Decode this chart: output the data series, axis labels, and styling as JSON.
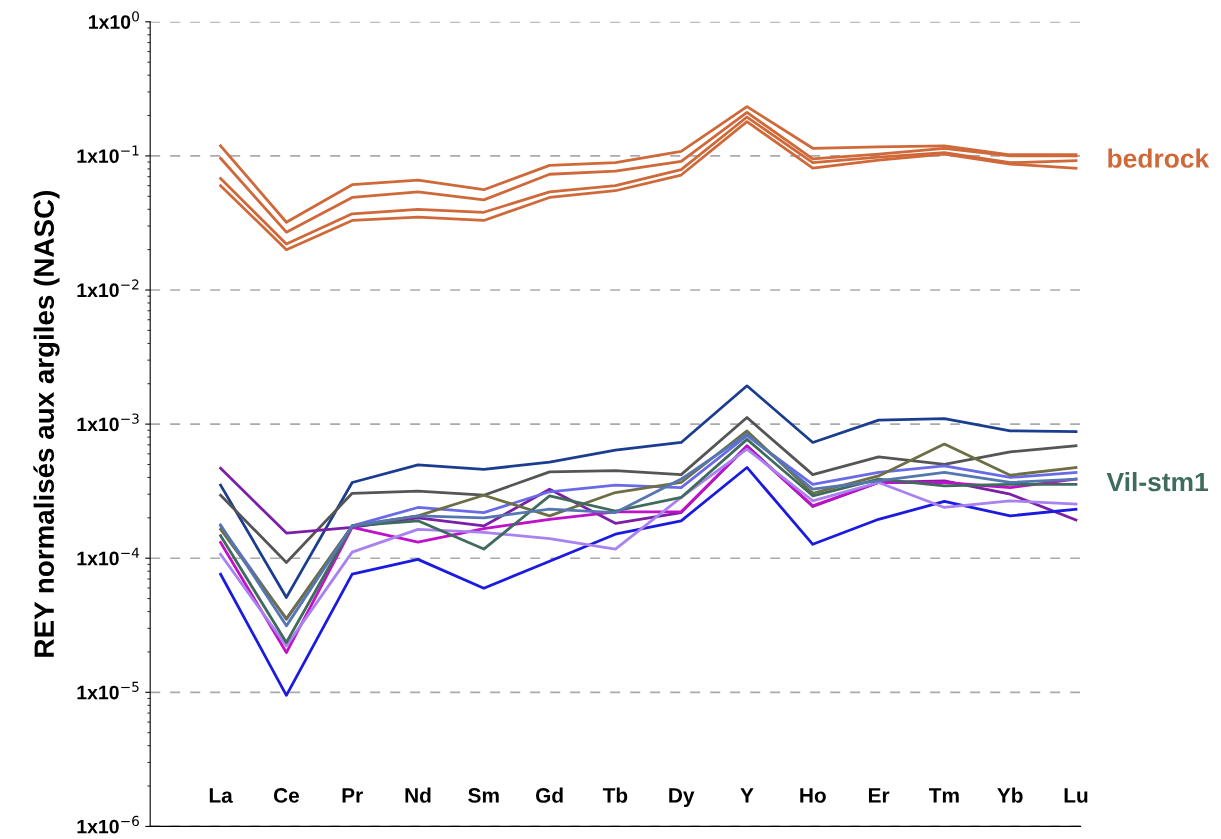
{
  "chart_data": {
    "type": "line",
    "ylabel": "REY normalisés aux argiles (NASC)",
    "categories": [
      "La",
      "Ce",
      "Pr",
      "Nd",
      "Sm",
      "Gd",
      "Tb",
      "Dy",
      "Y",
      "Ho",
      "Er",
      "Tm",
      "Yb",
      "Lu"
    ],
    "log": "y",
    "ylim": [
      1e-06,
      1
    ],
    "yticks": [
      {
        "value": 1e-06,
        "label": "1x10$^{−6}$"
      },
      {
        "value": 1e-05,
        "label": "1x10$^{−5}$"
      },
      {
        "value": 0.0001,
        "label": "1x10$^{−4}$"
      },
      {
        "value": 0.001,
        "label": "1x10$^{−3}$"
      },
      {
        "value": 0.01,
        "label": "1x10$^{−2}$"
      },
      {
        "value": 0.1,
        "label": "1x10$^{−1}$"
      },
      {
        "value": 1,
        "label": "1x10$^{0}$"
      }
    ],
    "grid": "y",
    "marker": "none",
    "line_style": "solid",
    "series": [
      {
        "color": "#d0693a",
        "values": [
          0.119,
          0.032,
          0.061,
          0.066,
          0.056,
          0.085,
          0.089,
          0.108,
          0.233,
          0.114,
          0.117,
          0.119,
          0.102,
          0.102
        ]
      },
      {
        "color": "#d0693a",
        "values": [
          0.096,
          0.027,
          0.049,
          0.054,
          0.047,
          0.073,
          0.077,
          0.091,
          0.211,
          0.095,
          0.103,
          0.114,
          0.1,
          0.1
        ]
      },
      {
        "name": "bedrock",
        "color": "#d0693a",
        "values": [
          0.068,
          0.022,
          0.037,
          0.04,
          0.038,
          0.054,
          0.06,
          0.079,
          0.195,
          0.089,
          0.098,
          0.106,
          0.089,
          0.092
        ]
      },
      {
        "color": "#d0693a",
        "values": [
          0.06,
          0.02,
          0.033,
          0.035,
          0.033,
          0.049,
          0.055,
          0.072,
          0.18,
          0.081,
          0.093,
          0.103,
          0.087,
          0.081
        ]
      },
      {
        "color": "#1a3d8f",
        "values": [
          0.000351,
          5.1e-05,
          0.000367,
          0.000497,
          0.00046,
          0.00052,
          0.00064,
          0.00073,
          0.00193,
          0.00073,
          0.00107,
          0.0011,
          0.00089,
          0.00088
        ]
      },
      {
        "color": "#555555",
        "values": [
          0.000295,
          9.3e-05,
          0.000305,
          0.000316,
          0.000295,
          0.00044,
          0.00045,
          0.00042,
          0.00112,
          0.00042,
          0.00057,
          0.0005,
          0.00062,
          0.00069
        ]
      },
      {
        "color": "#7a1fa6",
        "values": [
          0.000468,
          0.000154,
          0.00017,
          0.0002,
          0.000174,
          0.000327,
          0.000182,
          0.000219,
          0.00069,
          0.000243,
          0.000367,
          0.000377,
          0.0003,
          0.000193
        ]
      },
      {
        "color": "#c010c8",
        "values": [
          0.000131,
          1.98e-05,
          0.00017,
          0.000132,
          0.000166,
          0.000195,
          0.000222,
          0.000222,
          0.00068,
          0.000246,
          0.000367,
          0.000367,
          0.000336,
          0.000389
        ]
      },
      {
        "color": "#1a1ae0",
        "values": [
          7.6e-05,
          9.5e-06,
          7.6e-05,
          9.8e-05,
          5.97e-05,
          9.5e-05,
          0.000151,
          0.00019,
          0.000475,
          0.000127,
          0.000195,
          0.000265,
          0.000207,
          0.000232
        ]
      },
      {
        "color": "#a982f0",
        "values": [
          0.000107,
          2.22e-05,
          0.000111,
          0.000164,
          0.000156,
          0.00014,
          0.000117,
          0.000284,
          0.00065,
          0.000268,
          0.000367,
          0.000239,
          0.000268,
          0.000253
        ]
      },
      {
        "color": "#6a6ae8",
        "values": [
          0.000174,
          3.5e-05,
          0.000174,
          0.000239,
          0.000219,
          0.000313,
          0.000351,
          0.000336,
          0.00082,
          0.000356,
          0.000436,
          0.000488,
          0.0004,
          0.000436
        ]
      },
      {
        "color": "#6e6e45",
        "values": [
          0.000164,
          3.55e-05,
          0.000174,
          0.000207,
          0.000295,
          0.000207,
          0.000309,
          0.000367,
          0.00089,
          0.000305,
          0.000411,
          0.00071,
          0.000416,
          0.000475
        ]
      },
      {
        "name": "Vil-stm1",
        "color": "#3e6b5c",
        "values": [
          0.000147,
          2.35e-05,
          0.000174,
          0.00019,
          0.000117,
          0.000292,
          0.000225,
          0.000284,
          0.00077,
          0.000292,
          0.000389,
          0.000346,
          0.000356,
          0.000356
        ]
      },
      {
        "color": "#5577b0",
        "values": [
          0.000177,
          3.13e-05,
          0.000174,
          0.000207,
          0.0002,
          0.000232,
          0.000219,
          0.000389,
          0.00084,
          0.000327,
          0.000377,
          0.000436,
          0.000367,
          0.000389
        ]
      }
    ]
  }
}
